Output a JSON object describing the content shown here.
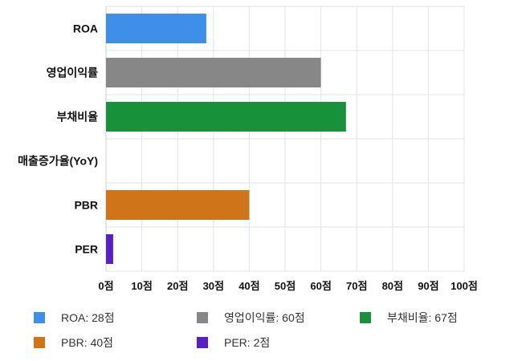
{
  "chart_data": {
    "type": "bar",
    "orientation": "horizontal",
    "categories": [
      "ROA",
      "영업이익률",
      "부채비율",
      "매출증가율(YoY)",
      "PBR",
      "PER"
    ],
    "values": [
      28,
      60,
      67,
      0,
      40,
      2
    ],
    "colors": [
      "#3d8fe8",
      "#878787",
      "#17923a",
      "#17923a",
      "#cf7419",
      "#5a1ec7"
    ],
    "x_ticks": [
      "0점",
      "10점",
      "20점",
      "30점",
      "40점",
      "50점",
      "60점",
      "70점",
      "80점",
      "90점",
      "100점"
    ],
    "xlim": [
      0,
      100
    ],
    "grid": true,
    "legend_position": "bottom",
    "legend": [
      {
        "label": "ROA: 28점",
        "color": "#3d8fe8"
      },
      {
        "label": "영업이익률: 60점",
        "color": "#878787"
      },
      {
        "label": "부채비율: 67점",
        "color": "#17923a"
      },
      {
        "label": "PBR: 40점",
        "color": "#cf7419"
      },
      {
        "label": "PER: 2점",
        "color": "#5a1ec7"
      }
    ]
  }
}
